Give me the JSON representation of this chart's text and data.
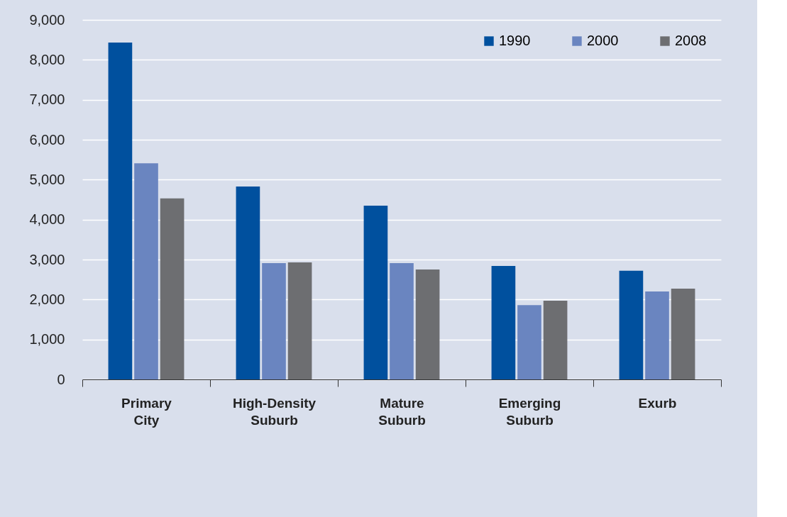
{
  "chart_data": {
    "type": "bar",
    "categories": [
      "Primary City",
      "High-Density Suburb",
      "Mature Suburb",
      "Emerging Suburb",
      "Exurb"
    ],
    "series": [
      {
        "name": "1990",
        "color": "#00509e",
        "values": [
          8430,
          4830,
          4350,
          2840,
          2720
        ]
      },
      {
        "name": "2000",
        "color": "#6a85c0",
        "values": [
          5410,
          2910,
          2910,
          1860,
          2200
        ]
      },
      {
        "name": "2008",
        "color": "#6d6e71",
        "values": [
          4530,
          2930,
          2750,
          1970,
          2270
        ]
      }
    ],
    "ylim": [
      0,
      9000
    ],
    "yticks": [
      0,
      {
        "value": 1000,
        "label": "1,000"
      },
      {
        "value": 2000,
        "label": "2,000"
      },
      {
        "value": 3000,
        "label": "3,000"
      },
      {
        "value": 4000,
        "label": "4,000"
      },
      {
        "value": 5000,
        "label": "5,000"
      },
      {
        "value": 6000,
        "label": "6,000"
      },
      {
        "value": 7000,
        "label": "7,000"
      },
      {
        "value": 8000,
        "label": "8,000"
      },
      {
        "value": 9000,
        "label": "9,000"
      }
    ],
    "grid": "y",
    "legend": "top right"
  }
}
